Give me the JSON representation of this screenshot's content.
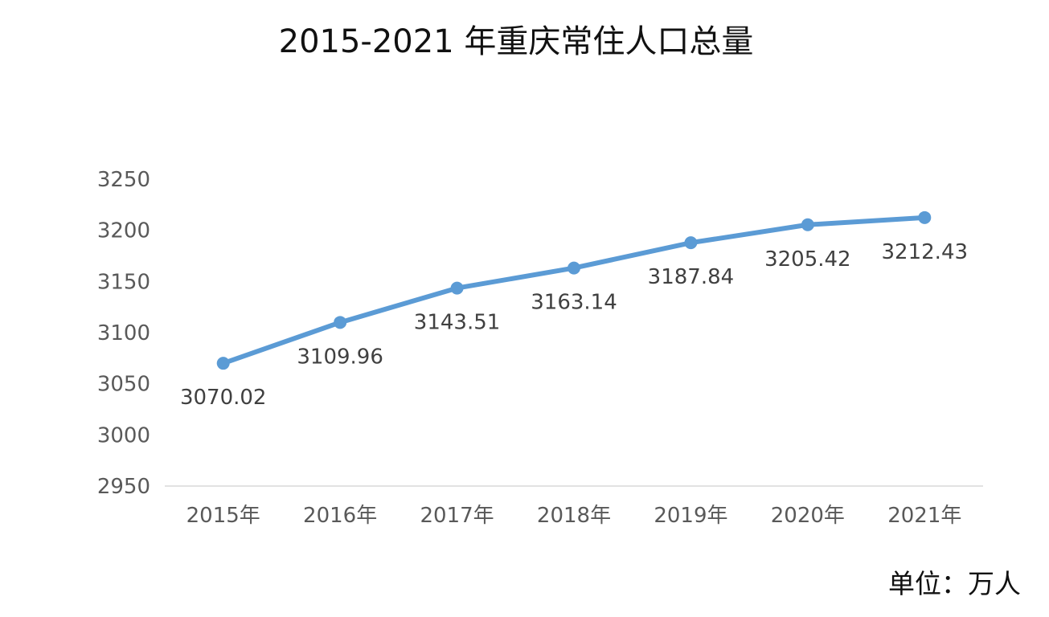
{
  "chart_data": {
    "type": "line",
    "title": "2015-2021 年重庆常住人口总量",
    "categories": [
      "2015年",
      "2016年",
      "2017年",
      "2018年",
      "2019年",
      "2020年",
      "2021年"
    ],
    "series": [
      {
        "values": [
          3070.02,
          3109.96,
          3143.51,
          3163.14,
          3187.84,
          3205.42,
          3212.43
        ],
        "color": "#5B9BD5"
      }
    ],
    "data_labels": [
      "3070.02",
      "3109.96",
      "3143.51",
      "3163.14",
      "3187.84",
      "3205.42",
      "3212.43"
    ],
    "yticks": [
      "3250",
      "3200",
      "3150",
      "3100",
      "3050",
      "3000",
      "2950"
    ],
    "ylim": [
      2950,
      3250
    ],
    "grid": false,
    "unit_note": "单位：万人"
  }
}
